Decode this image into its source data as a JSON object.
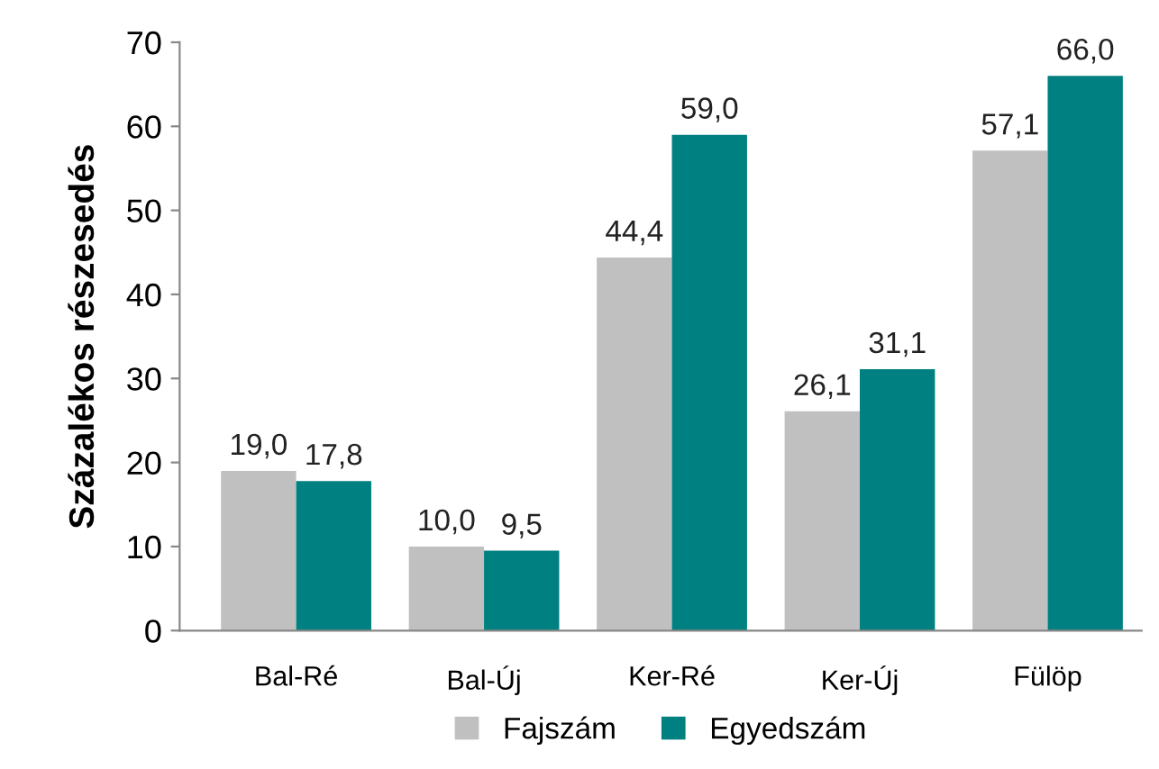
{
  "chart_data": {
    "type": "bar",
    "ylabel": "Százalékos részesedés",
    "categories": [
      "Bal-Ré",
      "Bal-Új",
      "Ker-Ré",
      "Ker-Új",
      "Fülöp"
    ],
    "series": [
      {
        "name": "Fajszám",
        "color": "#c0c0c0",
        "values": [
          19.0,
          10.0,
          44.4,
          26.1,
          57.1
        ],
        "value_labels": [
          "19,0",
          "10,0",
          "44,4",
          "26,1",
          "57,1"
        ]
      },
      {
        "name": "Egyedszám",
        "color": "#008080",
        "values": [
          17.8,
          9.5,
          59.0,
          31.1,
          66.0
        ],
        "value_labels": [
          "17,8",
          "9,5",
          "59,0",
          "31,1",
          "66,0"
        ]
      }
    ],
    "ylim": [
      0,
      70
    ],
    "yticks": [
      0,
      10,
      20,
      30,
      40,
      50,
      60,
      70
    ],
    "grid": false,
    "legend": "bottom"
  }
}
